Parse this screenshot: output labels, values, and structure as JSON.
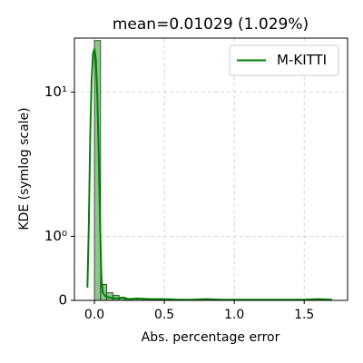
{
  "chart_data": {
    "type": "histogram",
    "title": "mean=0.01029 (1.029%)",
    "xlabel": "Abs. percentage error",
    "ylabel": "KDE (symlog scale)",
    "yscale": "symlog",
    "linthresh": 1,
    "linscale": 0.4,
    "grid": true,
    "legend": "upper right",
    "color": "#008000",
    "bins": [
      0,
      0.044,
      0.088,
      0.132,
      0.176,
      0.22,
      0.264,
      0.308,
      0.352,
      0.396,
      0.44,
      0.484,
      0.528,
      0.572,
      0.616,
      0.66,
      0.704,
      0.748,
      0.792,
      0.836,
      0.88,
      0.924,
      0.968,
      1.012,
      1.056,
      1.1,
      1.144,
      1.188,
      1.232,
      1.276,
      1.32,
      1.364,
      1.408,
      1.452,
      1.496,
      1.54,
      1.584,
      1.628,
      1.672,
      1.716
    ],
    "counts": [
      22.8,
      0.25,
      0.12,
      0.08,
      0.05,
      0.03,
      0.02,
      0.02,
      0.01,
      0.02,
      0.01,
      0.01,
      0.01,
      0.01,
      0.01,
      0,
      0.01,
      0.01,
      0,
      0.01,
      0.01,
      0,
      0,
      0.01,
      0,
      0,
      0.01,
      0,
      0,
      0,
      0,
      0,
      0,
      0,
      0,
      0.01,
      0,
      0.01,
      0
    ],
    "series": [
      {
        "name": "M-KITTI",
        "color": "#008000",
        "x": [
          -0.05,
          -0.04,
          -0.03,
          -0.02,
          -0.01,
          0,
          0.01,
          0.02,
          0.03,
          0.04,
          0.05,
          0.06,
          0.08,
          0.1,
          0.15,
          0.2,
          0.25,
          0.3,
          0.4,
          0.5,
          0.6,
          0.7,
          0.8,
          0.9,
          1.0,
          1.1,
          1.2,
          1.3,
          1.4,
          1.5,
          1.6,
          1.7
        ],
        "values": [
          0.2,
          1.2,
          5,
          12,
          18.5,
          20,
          17,
          10,
          4,
          1.3,
          0.35,
          0.12,
          0.06,
          0.05,
          0.03,
          0.04,
          0.02,
          0.03,
          0.02,
          0.02,
          0.01,
          0.01,
          0.02,
          0.01,
          0.01,
          0.01,
          0.01,
          0.01,
          0.01,
          0.01,
          0.02,
          0.01
        ]
      }
    ],
    "xlim": [
      -0.143,
      1.81
    ],
    "xticks": [
      {
        "value": 0,
        "label": "0.0"
      },
      0.5,
      {
        "value": 1,
        "label": "1.0"
      },
      1.5
    ],
    "ylim": [
      0,
      23.7
    ],
    "yticks": [
      0,
      {
        "value": 1,
        "label": "10⁰"
      },
      {
        "value": 10,
        "label": "10¹"
      }
    ]
  }
}
